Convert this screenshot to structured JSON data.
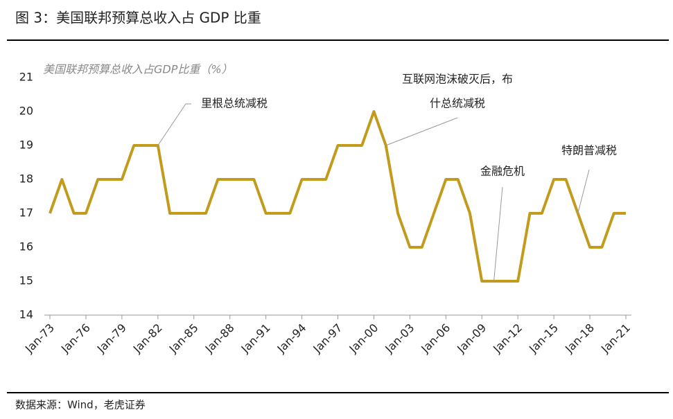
{
  "chart_data": {
    "type": "line",
    "title": "图 3：美国联邦预算总收入占 GDP 比重",
    "y_label": "美国联邦预算总收入占GDP比重（%）",
    "source": "数据来源：Wind，老虎证券",
    "categories": [
      "Jan-73",
      null,
      null,
      "Jan-76",
      null,
      null,
      "Jan-79",
      null,
      null,
      "Jan-82",
      null,
      null,
      "Jan-85",
      null,
      null,
      "Jan-88",
      null,
      null,
      "Jan-91",
      null,
      null,
      "Jan-94",
      null,
      null,
      "Jan-97",
      null,
      null,
      "Jan-00",
      null,
      null,
      "Jan-03",
      null,
      null,
      "Jan-06",
      null,
      null,
      "Jan-09",
      null,
      null,
      "Jan-12",
      null,
      null,
      "Jan-15",
      null,
      null,
      "Jan-18",
      null,
      null,
      "Jan-21"
    ],
    "series": [
      {
        "name": "美国联邦预算总收入占GDP比重",
        "color": "#c29b1c",
        "values": [
          17,
          18,
          17,
          17,
          18,
          18,
          18,
          19,
          19,
          19,
          17,
          17,
          17,
          17,
          18,
          18,
          18,
          18,
          17,
          17,
          17,
          18,
          18,
          18,
          19,
          19,
          19,
          20,
          19,
          17,
          16,
          16,
          17,
          18,
          18,
          17,
          15,
          15,
          15,
          15,
          17,
          17,
          18,
          18,
          17,
          16,
          16,
          17,
          17
        ]
      }
    ],
    "ylim": [
      14,
      21
    ],
    "yticks": [
      14,
      15,
      16,
      17,
      18,
      19,
      20,
      21
    ],
    "annotations": [
      {
        "lines": [
          "里根总统减税"
        ],
        "index": 9
      },
      {
        "lines": [
          "互联网泡沫破灭后，布",
          "什总统减税"
        ],
        "index": 28
      },
      {
        "lines": [
          "金融危机"
        ],
        "index": 37
      },
      {
        "lines": [
          "特朗普减税"
        ],
        "index": 44
      }
    ]
  }
}
